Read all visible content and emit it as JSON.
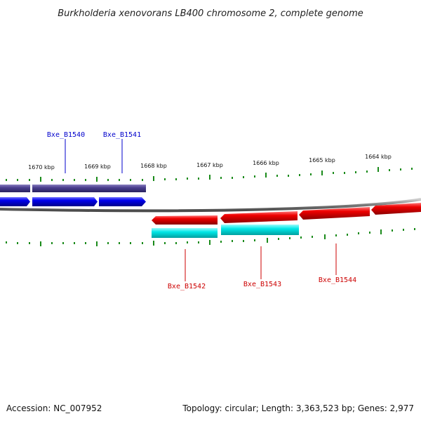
{
  "title": "Burkholderia xenovorans LB400 chromosome 2, complete genome",
  "accession_text": "Accession: NC_007952",
  "topology_text": "Topology: circular; Length: 3,363,523 bp; Genes: 2,977",
  "colors": {
    "forward_cds": "#0000ee",
    "forward_band": "#4b3f8f",
    "reverse_cds": "#ee0000",
    "reverse_band": "#00e6e6",
    "backbone": "#7a7a7a",
    "tick": "#1a8a1a",
    "forward_label": "#0000cc",
    "reverse_label": "#cc0000"
  },
  "scale_labels": [
    "1670 kbp",
    "1669 kbp",
    "1668 kbp",
    "1667 kbp",
    "1666 kbp",
    "1665 kbp",
    "1664 kbp"
  ],
  "gene_labels": {
    "forward": [
      "Bxe_B1540",
      "Bxe_B1541"
    ],
    "reverse": [
      "Bxe_B1542",
      "Bxe_B1543",
      "Bxe_B1544"
    ]
  }
}
